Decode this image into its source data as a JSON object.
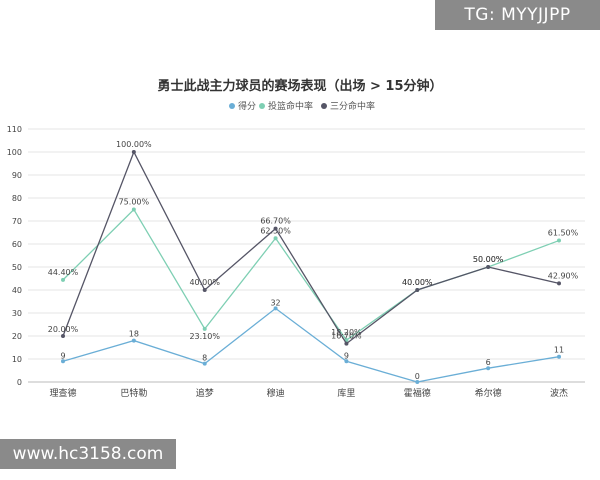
{
  "watermarks": {
    "top": "TG: MYYJJPP",
    "bottom": "www.hc3158.com"
  },
  "chart_data": {
    "type": "line",
    "title": "勇士此战主力球员的赛场表现（出场 > 15分钟）",
    "categories": [
      "理查德",
      "巴特勒",
      "追梦",
      "穆迪",
      "库里",
      "霍福德",
      "希尔德",
      "波杰"
    ],
    "ylim": [
      0,
      110
    ],
    "yticks": [
      0,
      10,
      20,
      30,
      40,
      50,
      60,
      70,
      80,
      90,
      100,
      110
    ],
    "grid": true,
    "legend_position": "top",
    "series": [
      {
        "name": "得分",
        "color": "#6aaed6",
        "values": [
          9,
          18,
          8,
          32,
          9,
          0,
          6,
          11
        ],
        "labels": [
          "9",
          "18",
          "8",
          "32",
          "9",
          "0",
          "6",
          "11"
        ]
      },
      {
        "name": "投篮命中率",
        "color": "#7ecfb3",
        "values": [
          44.4,
          75,
          23.1,
          62.5,
          18.2,
          40,
          50,
          61.5
        ],
        "labels": [
          "44.40%",
          "75.00%",
          "23.10%",
          "62.50%",
          "18.20%",
          "40.00%",
          "50.00%",
          "61.50%"
        ]
      },
      {
        "name": "三分命中率",
        "color": "#555566",
        "values": [
          20,
          100,
          40,
          66.7,
          16.7,
          40,
          50,
          42.9
        ],
        "labels": [
          "20.00%",
          "100.00%",
          "40.00%",
          "66.70%",
          "16.70%",
          "40.00%",
          "50.00%",
          "42.90%"
        ]
      }
    ]
  }
}
